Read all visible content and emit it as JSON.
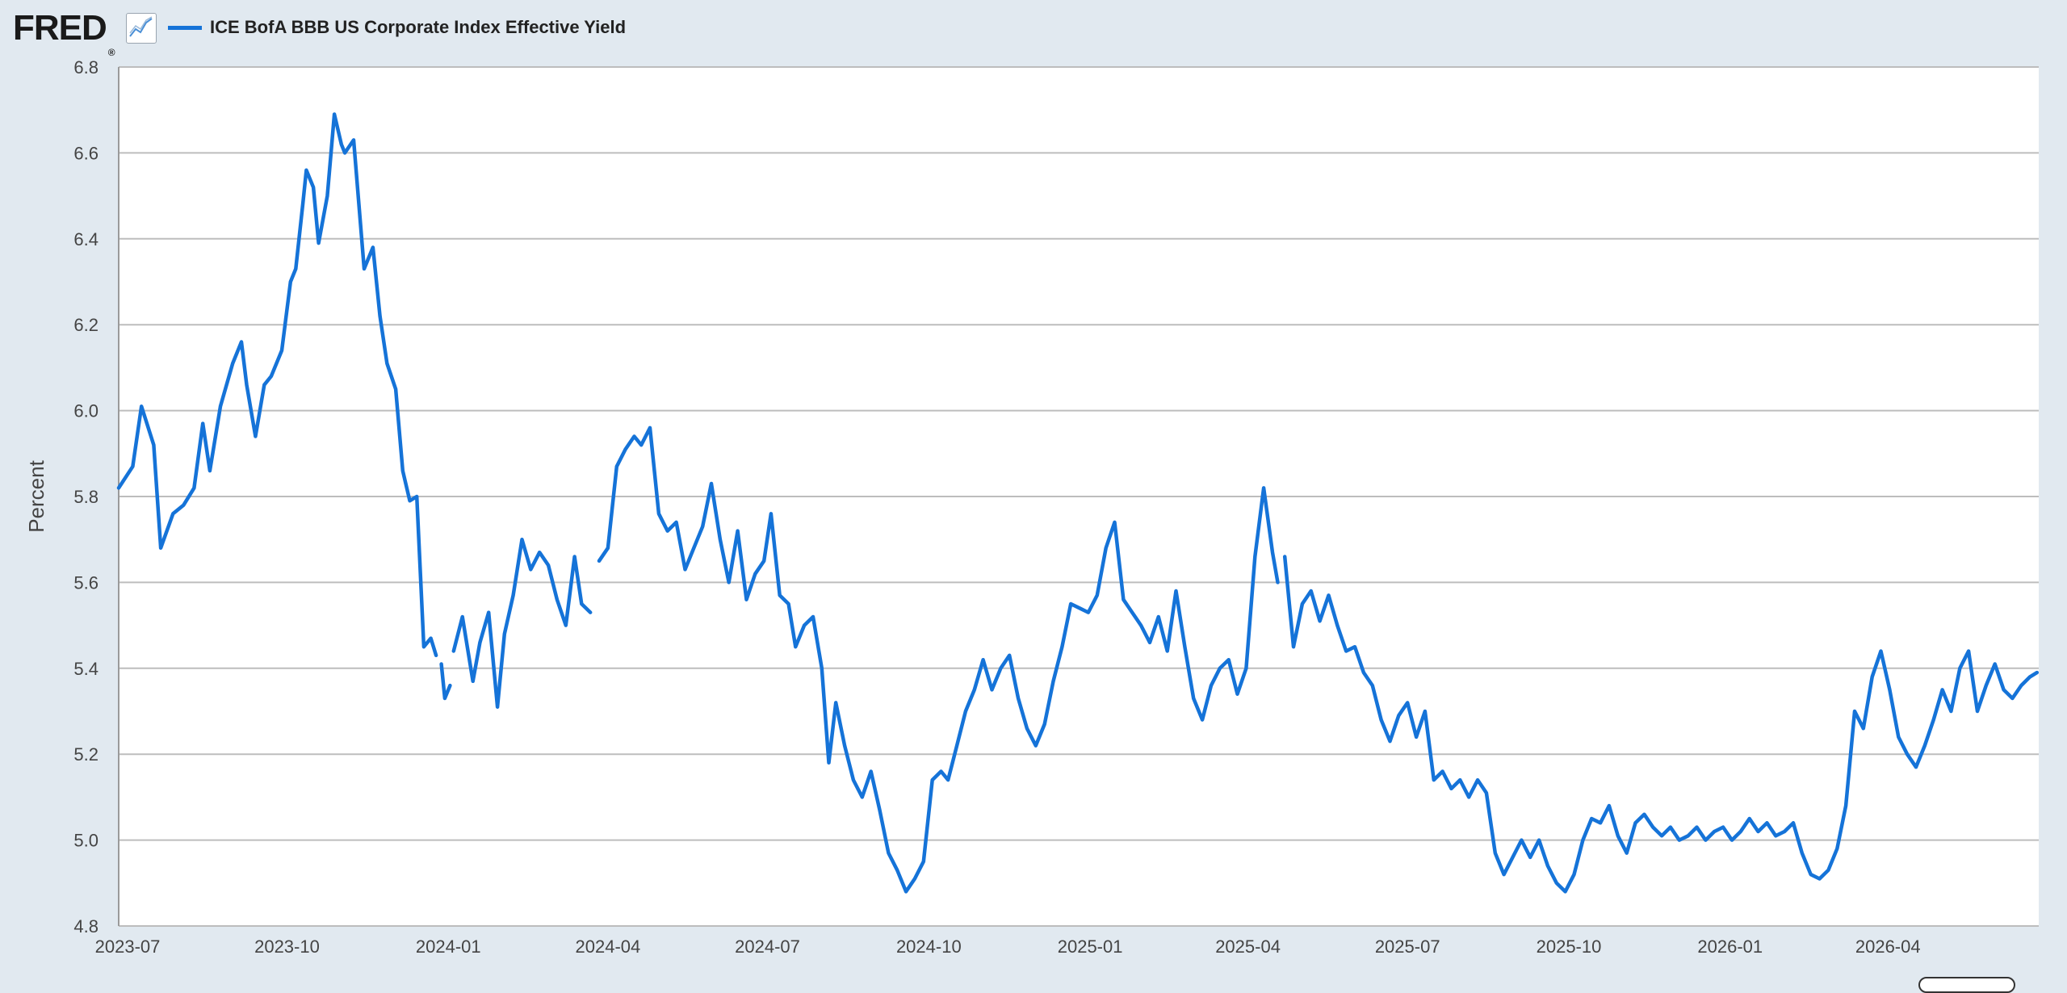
{
  "header": {
    "logo_text": "FRED",
    "logo_mark": "®",
    "chart_icon": "line-chart-icon"
  },
  "colors": {
    "series": "#1573d8",
    "background": "#e1e9f0",
    "plot_bg": "#ffffff",
    "grid": "#bdbdbd"
  },
  "chart_data": {
    "type": "line",
    "title": "",
    "xlabel": "",
    "ylabel": "Percent",
    "ylim": [
      4.8,
      6.8
    ],
    "yticks": [
      "4.8",
      "5.0",
      "5.2",
      "5.4",
      "5.6",
      "5.8",
      "6.0",
      "6.2",
      "6.4",
      "6.6",
      "6.8"
    ],
    "xticks": [
      "2023-07",
      "2023-10",
      "2024-01",
      "2024-04",
      "2024-07",
      "2024-10",
      "2025-01",
      "2025-04",
      "2025-07",
      "2025-10",
      "2026-01",
      "2026-04"
    ],
    "xlim": [
      "2023-06-27",
      "2026-06-26"
    ],
    "grid": true,
    "legend": "top-left",
    "series": [
      {
        "name": "ICE BofA BBB US Corporate Index Effective Yield",
        "segments": [
          [
            [
              "2023-06-27",
              5.82
            ],
            [
              "2023-07-05",
              5.87
            ],
            [
              "2023-07-10",
              6.01
            ],
            [
              "2023-07-17",
              5.92
            ],
            [
              "2023-07-21",
              5.68
            ],
            [
              "2023-07-28",
              5.76
            ],
            [
              "2023-08-03",
              5.78
            ],
            [
              "2023-08-09",
              5.82
            ],
            [
              "2023-08-14",
              5.97
            ],
            [
              "2023-08-18",
              5.86
            ],
            [
              "2023-08-24",
              6.01
            ],
            [
              "2023-08-31",
              6.11
            ],
            [
              "2023-09-05",
              6.16
            ],
            [
              "2023-09-08",
              6.06
            ],
            [
              "2023-09-13",
              5.94
            ],
            [
              "2023-09-18",
              6.06
            ],
            [
              "2023-09-22",
              6.08
            ],
            [
              "2023-09-28",
              6.14
            ],
            [
              "2023-10-03",
              6.3
            ],
            [
              "2023-10-06",
              6.33
            ],
            [
              "2023-10-10",
              6.48
            ],
            [
              "2023-10-12",
              6.56
            ],
            [
              "2023-10-16",
              6.52
            ],
            [
              "2023-10-19",
              6.39
            ],
            [
              "2023-10-24",
              6.5
            ],
            [
              "2023-10-28",
              6.69
            ],
            [
              "2023-11-01",
              6.62
            ],
            [
              "2023-11-03",
              6.6
            ],
            [
              "2023-11-08",
              6.63
            ],
            [
              "2023-11-14",
              6.33
            ],
            [
              "2023-11-19",
              6.38
            ],
            [
              "2023-11-23",
              6.22
            ],
            [
              "2023-11-27",
              6.11
            ],
            [
              "2023-12-02",
              6.05
            ],
            [
              "2023-12-06",
              5.86
            ],
            [
              "2023-12-10",
              5.79
            ],
            [
              "2023-12-14",
              5.8
            ],
            [
              "2023-12-18",
              5.45
            ],
            [
              "2023-12-22",
              5.47
            ],
            [
              "2023-12-25",
              5.43
            ]
          ],
          [
            [
              "2023-12-28",
              5.41
            ],
            [
              "2023-12-30",
              5.33
            ],
            [
              "2024-01-02",
              5.36
            ]
          ],
          [
            [
              "2024-01-04",
              5.44
            ],
            [
              "2024-01-09",
              5.52
            ],
            [
              "2024-01-15",
              5.37
            ],
            [
              "2024-01-19",
              5.46
            ],
            [
              "2024-01-24",
              5.53
            ],
            [
              "2024-01-29",
              5.31
            ],
            [
              "2024-02-02",
              5.48
            ],
            [
              "2024-02-07",
              5.57
            ],
            [
              "2024-02-12",
              5.7
            ],
            [
              "2024-02-17",
              5.63
            ],
            [
              "2024-02-22",
              5.67
            ],
            [
              "2024-02-27",
              5.64
            ],
            [
              "2024-03-03",
              5.56
            ],
            [
              "2024-03-08",
              5.5
            ],
            [
              "2024-03-13",
              5.66
            ],
            [
              "2024-03-17",
              5.55
            ],
            [
              "2024-03-22",
              5.53
            ]
          ],
          [
            [
              "2024-03-27",
              5.65
            ],
            [
              "2024-04-01",
              5.68
            ],
            [
              "2024-04-06",
              5.87
            ],
            [
              "2024-04-11",
              5.91
            ],
            [
              "2024-04-16",
              5.94
            ],
            [
              "2024-04-20",
              5.92
            ],
            [
              "2024-04-25",
              5.96
            ],
            [
              "2024-04-30",
              5.76
            ],
            [
              "2024-05-05",
              5.72
            ],
            [
              "2024-05-10",
              5.74
            ],
            [
              "2024-05-15",
              5.63
            ],
            [
              "2024-05-20",
              5.68
            ],
            [
              "2024-05-25",
              5.73
            ],
            [
              "2024-05-30",
              5.83
            ],
            [
              "2024-06-04",
              5.7
            ],
            [
              "2024-06-09",
              5.6
            ],
            [
              "2024-06-14",
              5.72
            ],
            [
              "2024-06-19",
              5.56
            ],
            [
              "2024-06-24",
              5.62
            ],
            [
              "2024-06-29",
              5.65
            ],
            [
              "2024-07-03",
              5.76
            ],
            [
              "2024-07-08",
              5.57
            ],
            [
              "2024-07-13",
              5.55
            ],
            [
              "2024-07-17",
              5.45
            ],
            [
              "2024-07-22",
              5.5
            ],
            [
              "2024-07-27",
              5.52
            ],
            [
              "2024-08-01",
              5.4
            ],
            [
              "2024-08-05",
              5.18
            ],
            [
              "2024-08-09",
              5.32
            ],
            [
              "2024-08-14",
              5.22
            ],
            [
              "2024-08-19",
              5.14
            ],
            [
              "2024-08-24",
              5.1
            ],
            [
              "2024-08-29",
              5.16
            ],
            [
              "2024-09-03",
              5.07
            ],
            [
              "2024-09-08",
              4.97
            ],
            [
              "2024-09-13",
              4.93
            ],
            [
              "2024-09-18",
              4.88
            ],
            [
              "2024-09-23",
              4.91
            ],
            [
              "2024-09-28",
              4.95
            ],
            [
              "2024-10-03",
              5.14
            ],
            [
              "2024-10-08",
              5.16
            ],
            [
              "2024-10-12",
              5.14
            ],
            [
              "2024-10-17",
              5.22
            ],
            [
              "2024-10-22",
              5.3
            ],
            [
              "2024-10-27",
              5.35
            ],
            [
              "2024-11-01",
              5.42
            ],
            [
              "2024-11-06",
              5.35
            ],
            [
              "2024-11-11",
              5.4
            ],
            [
              "2024-11-16",
              5.43
            ],
            [
              "2024-11-21",
              5.33
            ],
            [
              "2024-11-26",
              5.26
            ],
            [
              "2024-12-01",
              5.22
            ],
            [
              "2024-12-06",
              5.27
            ],
            [
              "2024-12-11",
              5.37
            ],
            [
              "2024-12-16",
              5.45
            ],
            [
              "2024-12-21",
              5.55
            ],
            [
              "2024-12-26",
              5.54
            ],
            [
              "2024-12-31",
              5.53
            ],
            [
              "2025-01-05",
              5.57
            ],
            [
              "2025-01-10",
              5.68
            ],
            [
              "2025-01-15",
              5.74
            ],
            [
              "2025-01-20",
              5.56
            ],
            [
              "2025-01-25",
              5.53
            ],
            [
              "2025-01-30",
              5.5
            ],
            [
              "2025-02-04",
              5.46
            ],
            [
              "2025-02-09",
              5.52
            ],
            [
              "2025-02-14",
              5.44
            ],
            [
              "2025-02-19",
              5.58
            ],
            [
              "2025-02-24",
              5.45
            ],
            [
              "2025-03-01",
              5.33
            ],
            [
              "2025-03-06",
              5.28
            ],
            [
              "2025-03-11",
              5.36
            ],
            [
              "2025-03-16",
              5.4
            ],
            [
              "2025-03-21",
              5.42
            ],
            [
              "2025-03-26",
              5.34
            ],
            [
              "2025-03-31",
              5.4
            ],
            [
              "2025-04-05",
              5.66
            ],
            [
              "2025-04-10",
              5.82
            ],
            [
              "2025-04-15",
              5.67
            ],
            [
              "2025-04-18",
              5.6
            ]
          ],
          [
            [
              "2025-04-22",
              5.66
            ],
            [
              "2025-04-27",
              5.45
            ],
            [
              "2025-05-02",
              5.55
            ],
            [
              "2025-05-07",
              5.58
            ],
            [
              "2025-05-12",
              5.51
            ],
            [
              "2025-05-17",
              5.57
            ],
            [
              "2025-05-22",
              5.5
            ],
            [
              "2025-05-27",
              5.44
            ],
            [
              "2025-06-01",
              5.45
            ],
            [
              "2025-06-06",
              5.39
            ],
            [
              "2025-06-11",
              5.36
            ],
            [
              "2025-06-16",
              5.28
            ],
            [
              "2025-06-21",
              5.23
            ],
            [
              "2025-06-26",
              5.29
            ],
            [
              "2025-07-01",
              5.32
            ],
            [
              "2025-07-06",
              5.24
            ],
            [
              "2025-07-11",
              5.3
            ],
            [
              "2025-07-16",
              5.14
            ],
            [
              "2025-07-21",
              5.16
            ],
            [
              "2025-07-26",
              5.12
            ],
            [
              "2025-07-31",
              5.14
            ],
            [
              "2025-08-05",
              5.1
            ],
            [
              "2025-08-10",
              5.14
            ],
            [
              "2025-08-15",
              5.11
            ],
            [
              "2025-08-20",
              4.97
            ],
            [
              "2025-08-25",
              4.92
            ],
            [
              "2025-08-30",
              4.96
            ],
            [
              "2025-09-04",
              5.0
            ],
            [
              "2025-09-09",
              4.96
            ],
            [
              "2025-09-14",
              5.0
            ],
            [
              "2025-09-19",
              4.94
            ],
            [
              "2025-09-24",
              4.9
            ],
            [
              "2025-09-29",
              4.88
            ],
            [
              "2025-10-04",
              4.92
            ],
            [
              "2025-10-09",
              5.0
            ],
            [
              "2025-10-14",
              5.05
            ],
            [
              "2025-10-19",
              5.04
            ],
            [
              "2025-10-24",
              5.08
            ],
            [
              "2025-10-29",
              5.01
            ],
            [
              "2025-11-03",
              4.97
            ],
            [
              "2025-11-08",
              5.04
            ],
            [
              "2025-11-13",
              5.06
            ],
            [
              "2025-11-18",
              5.03
            ],
            [
              "2025-11-23",
              5.01
            ],
            [
              "2025-11-28",
              5.03
            ],
            [
              "2025-12-03",
              5.0
            ],
            [
              "2025-12-08",
              5.01
            ],
            [
              "2025-12-13",
              5.03
            ],
            [
              "2025-12-18",
              5.0
            ],
            [
              "2025-12-23",
              5.02
            ],
            [
              "2025-12-28",
              5.03
            ],
            [
              "2026-01-02",
              5.0
            ],
            [
              "2026-01-07",
              5.02
            ],
            [
              "2026-01-12",
              5.05
            ],
            [
              "2026-01-17",
              5.02
            ],
            [
              "2026-01-22",
              5.04
            ],
            [
              "2026-01-27",
              5.01
            ],
            [
              "2026-02-01",
              5.02
            ],
            [
              "2026-02-06",
              5.04
            ],
            [
              "2026-02-11",
              4.97
            ],
            [
              "2026-02-16",
              4.92
            ],
            [
              "2026-02-21",
              4.91
            ],
            [
              "2026-02-26",
              4.93
            ],
            [
              "2026-03-03",
              4.98
            ],
            [
              "2026-03-08",
              5.08
            ],
            [
              "2026-03-13",
              5.3
            ],
            [
              "2026-03-18",
              5.26
            ],
            [
              "2026-03-23",
              5.38
            ],
            [
              "2026-03-28",
              5.44
            ],
            [
              "2026-04-02",
              5.35
            ],
            [
              "2026-04-07",
              5.24
            ],
            [
              "2026-04-12",
              5.2
            ],
            [
              "2026-04-17",
              5.17
            ],
            [
              "2026-04-22",
              5.22
            ],
            [
              "2026-04-27",
              5.28
            ],
            [
              "2026-05-02",
              5.35
            ],
            [
              "2026-05-07",
              5.3
            ],
            [
              "2026-05-12",
              5.4
            ],
            [
              "2026-05-17",
              5.44
            ],
            [
              "2026-05-22",
              5.3
            ],
            [
              "2026-05-27",
              5.36
            ],
            [
              "2026-06-01",
              5.41
            ],
            [
              "2026-06-06",
              5.35
            ],
            [
              "2026-06-11",
              5.33
            ],
            [
              "2026-06-16",
              5.36
            ],
            [
              "2026-06-21",
              5.38
            ],
            [
              "2026-06-25",
              5.39
            ]
          ]
        ]
      }
    ]
  }
}
